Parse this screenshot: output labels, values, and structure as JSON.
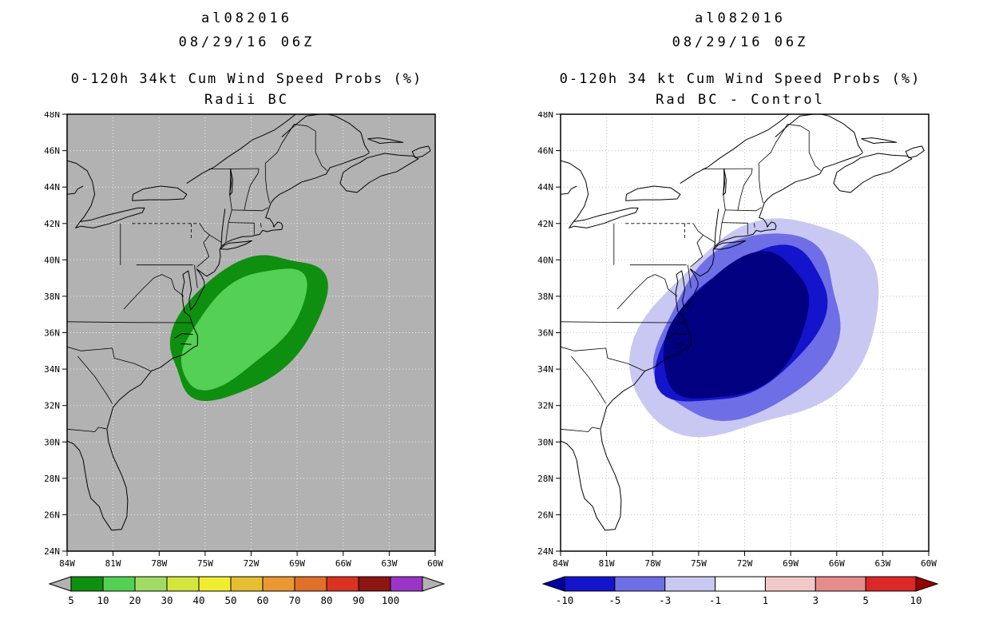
{
  "panels": [
    {
      "title": "al082016",
      "datetime": "08/29/16 06Z",
      "subtitle1": "0-120h 34kt Cum Wind Speed Probs (%)",
      "subtitle2": "Radii BC",
      "map_bg": "#b2b2b2",
      "grid_color": "#f0f0f0",
      "colorbar": {
        "labels": [
          "5",
          "10",
          "20",
          "30",
          "40",
          "50",
          "60",
          "70",
          "80",
          "90",
          "100"
        ],
        "colors": [
          "#0f8f0f",
          "#54d054",
          "#a0dc64",
          "#d2e63c",
          "#f0ec30",
          "#e6be32",
          "#ea9832",
          "#e0702a",
          "#dc3222",
          "#8e1612",
          "#9a35c8"
        ],
        "arrow_left_color": "#b2b2b2",
        "arrow_right_color": "#b2b2b2"
      }
    },
    {
      "title": "al082016",
      "datetime": "08/29/16 06Z",
      "subtitle1": "0-120h 34 kt Cum Wind Speed Probs (%)",
      "subtitle2": "Rad BC - Control",
      "map_bg": "#ffffff",
      "grid_color": "#c2c2c2",
      "colorbar": {
        "labels": [
          "-10",
          "-5",
          "-3",
          "-1",
          "1",
          "3",
          "5",
          "10"
        ],
        "colors": [
          "#1414cc",
          "#6e6ee6",
          "#c8c8f2",
          "#ffffff",
          "#f2c8c8",
          "#e68c8c",
          "#dc2828"
        ],
        "arrow_left_color": "#0000a0",
        "arrow_right_color": "#990000"
      }
    }
  ],
  "axes": {
    "lat_labels": [
      "48N",
      "46N",
      "44N",
      "42N",
      "40N",
      "38N",
      "36N",
      "34N",
      "32N",
      "30N",
      "28N",
      "26N",
      "24N"
    ],
    "lat_values": [
      48,
      46,
      44,
      42,
      40,
      38,
      36,
      34,
      32,
      30,
      28,
      26,
      24
    ],
    "lon_labels": [
      "84W",
      "81W",
      "78W",
      "75W",
      "72W",
      "69W",
      "66W",
      "63W",
      "60W"
    ],
    "lon_values": [
      -84,
      -81,
      -78,
      -75,
      -72,
      -69,
      -66,
      -63,
      -60
    ]
  },
  "chart_data": [
    {
      "type": "heatmap",
      "subtype": "filled-contour-probability-map",
      "storm_id": "al082016",
      "valid_time": "08/29/16 06Z",
      "title": "0-120h 34kt Cum Wind Speed Probs (%)",
      "variant": "Radii BC",
      "lon_range": [
        "84W",
        "60W"
      ],
      "lat_range": [
        "24N",
        "48N"
      ],
      "units": "%",
      "grid": true,
      "colorbar_position": "bottom",
      "levels": [
        5,
        10,
        20,
        30,
        40,
        50,
        60,
        70,
        80,
        90,
        100
      ],
      "max_shown_level": 10,
      "contours": [
        {
          "level": 5,
          "color": "#0f8f0f",
          "cx": -72.3,
          "cy": 36.4,
          "rx": 5.7,
          "ry": 3.2,
          "rot": 33,
          "seed": 4
        },
        {
          "level": 10,
          "color": "#54d054",
          "cx": -72.55,
          "cy": 36.35,
          "rx": 4.6,
          "ry": 2.3,
          "rot": 33,
          "seed": 7
        }
      ],
      "description": "Cumulative 34-kt wind speed probabilities; green shaded region elongated SW-NE centered near 36N 72.5W off the North Carolina coast"
    },
    {
      "type": "heatmap",
      "subtype": "filled-contour-difference-map",
      "storm_id": "al082016",
      "valid_time": "08/29/16 06Z",
      "title": "0-120h 34 kt Cum Wind Speed Probs (%)",
      "variant": "Rad BC - Control",
      "lon_range": [
        "84W",
        "60W"
      ],
      "lat_range": [
        "24N",
        "48N"
      ],
      "units": "% difference",
      "grid": true,
      "colorbar_position": "bottom",
      "levels": [
        -10,
        -5,
        -3,
        -1,
        1,
        3,
        5,
        10
      ],
      "contours": [
        {
          "level": -1,
          "color": "#c8c8f2",
          "cx": -71.2,
          "cy": 36.2,
          "rx": 8.1,
          "ry": 5.6,
          "rot": 25,
          "seed": 2
        },
        {
          "level": -3,
          "color": "#6e6ee6",
          "cx": -71.7,
          "cy": 36.25,
          "rx": 6.7,
          "ry": 4.4,
          "rot": 28,
          "seed": 5
        },
        {
          "level": -5,
          "color": "#1414cc",
          "cx": -72.1,
          "cy": 36.3,
          "rx": 5.8,
          "ry": 3.6,
          "rot": 31,
          "seed": 8
        },
        {
          "level": -10,
          "color": "#000080",
          "cx": -72.5,
          "cy": 36.2,
          "rx": 5.5,
          "ry": 3.2,
          "rot": 33,
          "seed": 11
        }
      ],
      "description": "Difference (Radii BC minus Control): large negative region (blue, below -10) centered offshore of North Carolina"
    }
  ]
}
